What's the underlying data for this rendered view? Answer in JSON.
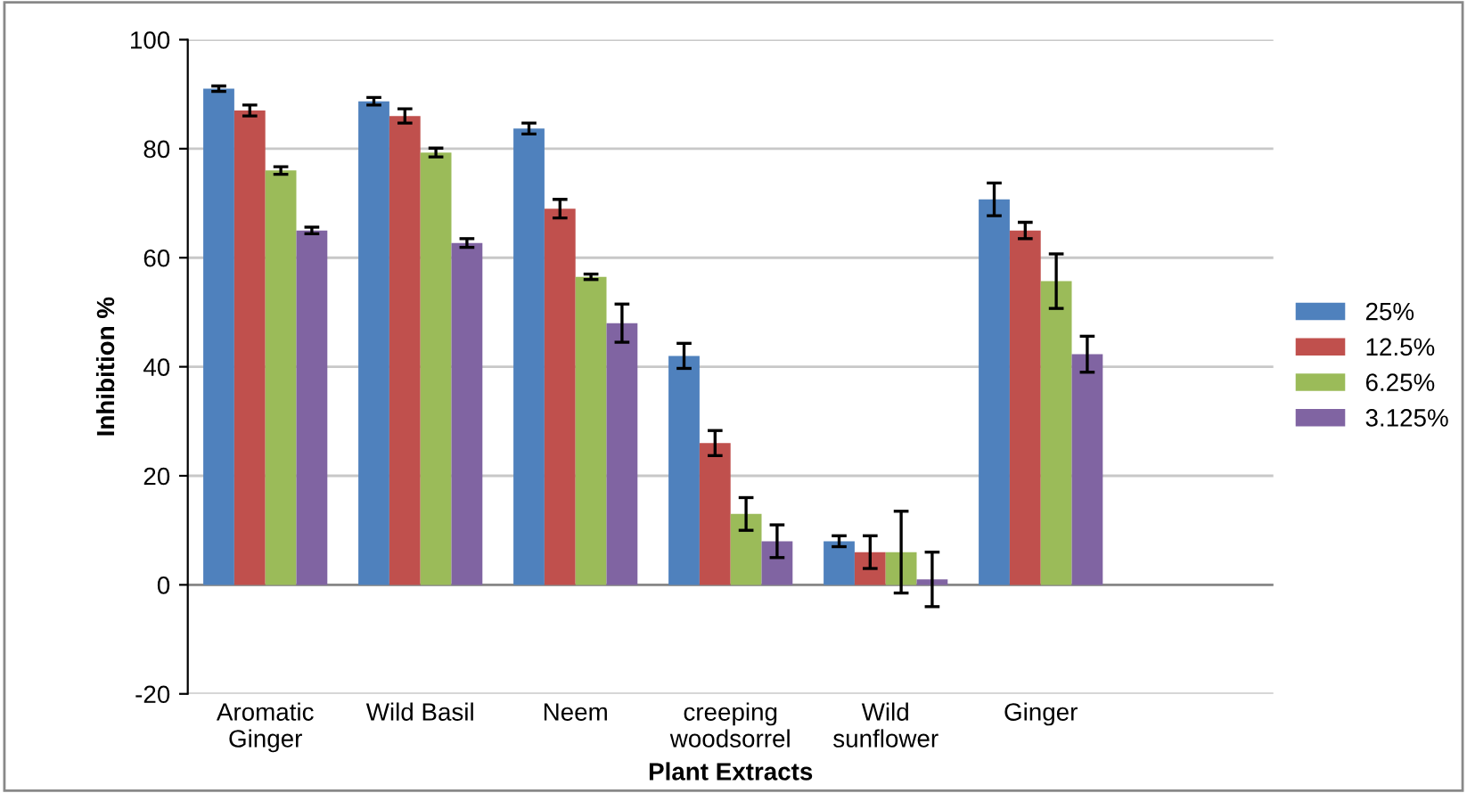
{
  "chart_data": {
    "type": "bar",
    "xlabel": "Plant Extracts",
    "ylabel": "Inhibition %",
    "categories": [
      "Aromatic\nGinger",
      "Wild Basil",
      "Neem",
      "creeping\nwoodsorrel",
      "Wild\nsunflower",
      "Ginger",
      null
    ],
    "series": [
      {
        "name": "25%",
        "color": "#4f81bd",
        "values": [
          91,
          88.7,
          83.7,
          42,
          8,
          70.7,
          null
        ],
        "errors": [
          0.5,
          0.7,
          1,
          2.3,
          1,
          3,
          null
        ]
      },
      {
        "name": "12.5%",
        "color": "#c0504d",
        "values": [
          87,
          86,
          69,
          26,
          6,
          65,
          null
        ],
        "errors": [
          1,
          1.3,
          1.7,
          2.3,
          3,
          1.5,
          null
        ]
      },
      {
        "name": "6.25%",
        "color": "#9bbb59",
        "values": [
          76,
          79.3,
          56.5,
          13,
          6,
          55.7,
          null
        ],
        "errors": [
          0.7,
          0.8,
          0.5,
          3,
          7.5,
          5,
          null
        ]
      },
      {
        "name": "3.125%",
        "color": "#8064a2",
        "values": [
          65,
          62.7,
          48,
          8,
          1,
          42.3,
          null
        ],
        "errors": [
          0.6,
          0.8,
          3.5,
          3,
          5,
          3.3,
          null
        ]
      }
    ],
    "ylim": [
      -20,
      100
    ],
    "yticks": [
      -20,
      0,
      20,
      40,
      60,
      80,
      100
    ],
    "grid": "y",
    "legend": "right"
  }
}
